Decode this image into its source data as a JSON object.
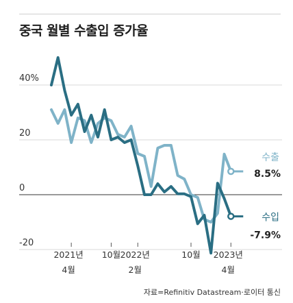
{
  "title": "중국 월별 수출입 증가율",
  "source": "자료=Refinitiv Datastream·로이터 통신",
  "colors": {
    "export": "#7fb3c8",
    "import": "#2a6e83"
  },
  "chart_data": {
    "type": "line",
    "title": "중국 월별 수출입 증가율",
    "ylim": [
      -24,
      56
    ],
    "y_ticks": [
      -20,
      0,
      20,
      40
    ],
    "y_tick_labels": [
      "-20",
      "0",
      "20",
      "40%"
    ],
    "x_tick_labels": [
      {
        "year": "2021년",
        "month": "4월"
      },
      {
        "year": "",
        "month": "10월"
      },
      {
        "year": "2022년",
        "month": "2월"
      },
      {
        "year": "",
        "month": "10월"
      },
      {
        "year": "2023년",
        "month": "4월"
      }
    ],
    "x_tick_months": [
      "2021-04",
      "2021-10",
      "2022-02",
      "2022-10",
      "2023-04"
    ],
    "x": [
      "2021-01",
      "2021-02",
      "2021-03",
      "2021-04",
      "2021-05",
      "2021-06",
      "2021-07",
      "2021-08",
      "2021-09",
      "2021-10",
      "2021-11",
      "2021-12",
      "2022-01",
      "2022-02",
      "2022-03",
      "2022-04",
      "2022-05",
      "2022-06",
      "2022-07",
      "2022-08",
      "2022-09",
      "2022-10",
      "2022-11",
      "2022-12",
      "2023-01",
      "2023-02",
      "2023-03",
      "2023-04",
      "2023-05"
    ],
    "series": [
      {
        "name": "수출",
        "end_label": "8.5%",
        "values": [
          31,
          26,
          31,
          19,
          28,
          27,
          19,
          26,
          28,
          27,
          22,
          21,
          25,
          15,
          14,
          3,
          17,
          18,
          18,
          7,
          5.7,
          0,
          -1,
          -9,
          -10,
          -6.8,
          14.8,
          8.5,
          8.5
        ]
      },
      {
        "name": "수입",
        "end_label": "-7.9%",
        "values": [
          40,
          50,
          38,
          29,
          33,
          23,
          29,
          21,
          31,
          20,
          21,
          19,
          20,
          10.5,
          0,
          0,
          4,
          1,
          3,
          0.3,
          0.3,
          -0.7,
          -10.6,
          -7.5,
          -21.3,
          4.2,
          -1.4,
          -7.9,
          -7.9
        ]
      }
    ]
  }
}
